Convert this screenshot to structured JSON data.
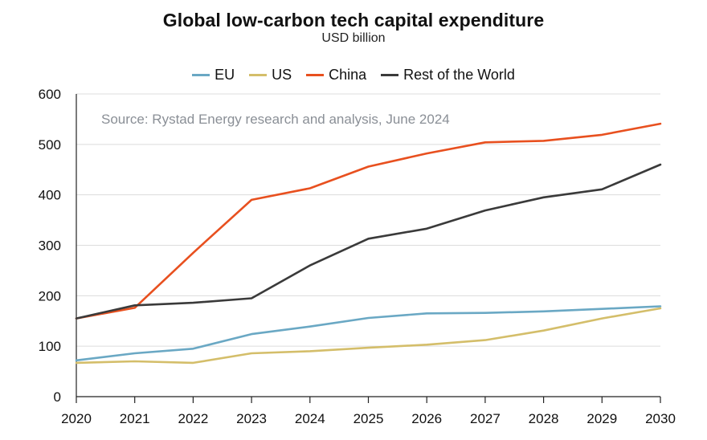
{
  "chart_data": {
    "type": "line",
    "title": "Global low-carbon tech capital expenditure",
    "subtitle": "USD billion",
    "annotation": "Source: Rystad Energy research and analysis, June 2024",
    "xlabel": "",
    "ylabel": "",
    "x": [
      2020,
      2021,
      2022,
      2023,
      2024,
      2025,
      2026,
      2027,
      2028,
      2029,
      2030
    ],
    "ylim": [
      0,
      600
    ],
    "yticks": [
      0,
      100,
      200,
      300,
      400,
      500,
      600
    ],
    "grid": true,
    "legend": "top-center",
    "series": [
      {
        "name": "EU",
        "color": "#6aa8c4",
        "values": [
          72,
          86,
          95,
          124,
          139,
          156,
          165,
          166,
          169,
          174,
          179
        ]
      },
      {
        "name": "US",
        "color": "#d4be6a",
        "values": [
          67,
          70,
          67,
          86,
          90,
          97,
          103,
          112,
          131,
          155,
          175
        ]
      },
      {
        "name": "China",
        "color": "#e8501f",
        "values": [
          155,
          176,
          285,
          390,
          413,
          456,
          482,
          504,
          507,
          519,
          541
        ]
      },
      {
        "name": "Rest of the World",
        "color": "#3a3a3a",
        "values": [
          155,
          181,
          186,
          195,
          260,
          313,
          333,
          369,
          395,
          411,
          460
        ]
      }
    ]
  }
}
